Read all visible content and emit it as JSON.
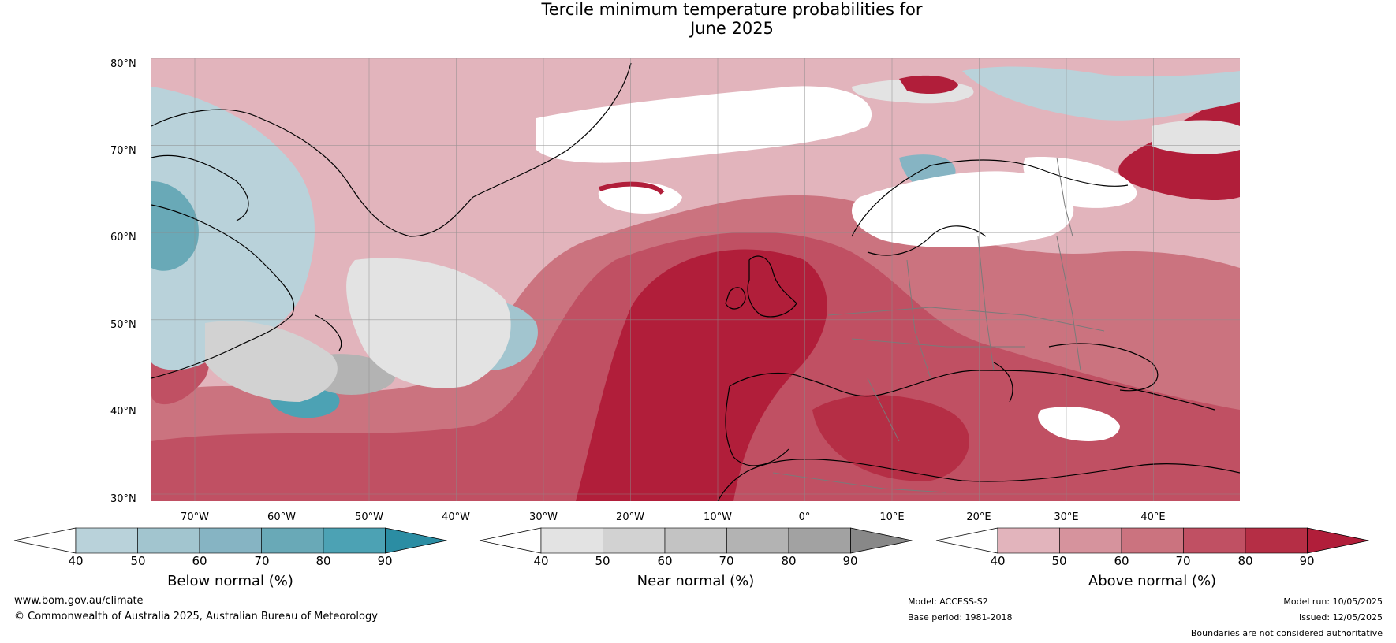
{
  "title": {
    "line1": "Tercile minimum temperature probabilities for",
    "line2": "June 2025"
  },
  "lat_labels": [
    "80°N",
    "70°N",
    "60°N",
    "50°N",
    "40°N",
    "30°N"
  ],
  "lon_labels": [
    "70°W",
    "60°W",
    "50°W",
    "40°W",
    "30°W",
    "20°W",
    "10°W",
    "0°",
    "10°E",
    "20°E",
    "30°E",
    "40°E"
  ],
  "colorbars": [
    {
      "title": "Below normal (%)",
      "ticks": [
        "40",
        "50",
        "60",
        "70",
        "80",
        "90"
      ],
      "colors": [
        "#ffffff",
        "#b9d2da",
        "#a2c5cf",
        "#86b4c3",
        "#69a9b7",
        "#4ca2b4",
        "#2b8da3"
      ]
    },
    {
      "title": "Near normal (%)",
      "ticks": [
        "40",
        "50",
        "60",
        "70",
        "80",
        "90"
      ],
      "colors": [
        "#ffffff",
        "#e3e3e3",
        "#d2d2d2",
        "#c3c3c3",
        "#b3b3b3",
        "#a2a2a2",
        "#888888"
      ]
    },
    {
      "title": "Above normal (%)",
      "ticks": [
        "40",
        "50",
        "60",
        "70",
        "80",
        "90"
      ],
      "colors": [
        "#ffffff",
        "#e2b4bc",
        "#d6939d",
        "#cb737f",
        "#c05063",
        "#b52e45",
        "#b11e3a"
      ]
    }
  ],
  "footer": {
    "website": "www.bom.gov.au/climate",
    "copyright": "© Commonwealth of Australia 2025, Australian Bureau of Meteorology",
    "model": "Model: ACCESS-S2",
    "base_period": "Base period: 1981-2018",
    "model_run": "Model run: 10/05/2025",
    "issued": "Issued: 12/05/2025",
    "disclaimer": "Boundaries are not considered authoritative"
  }
}
